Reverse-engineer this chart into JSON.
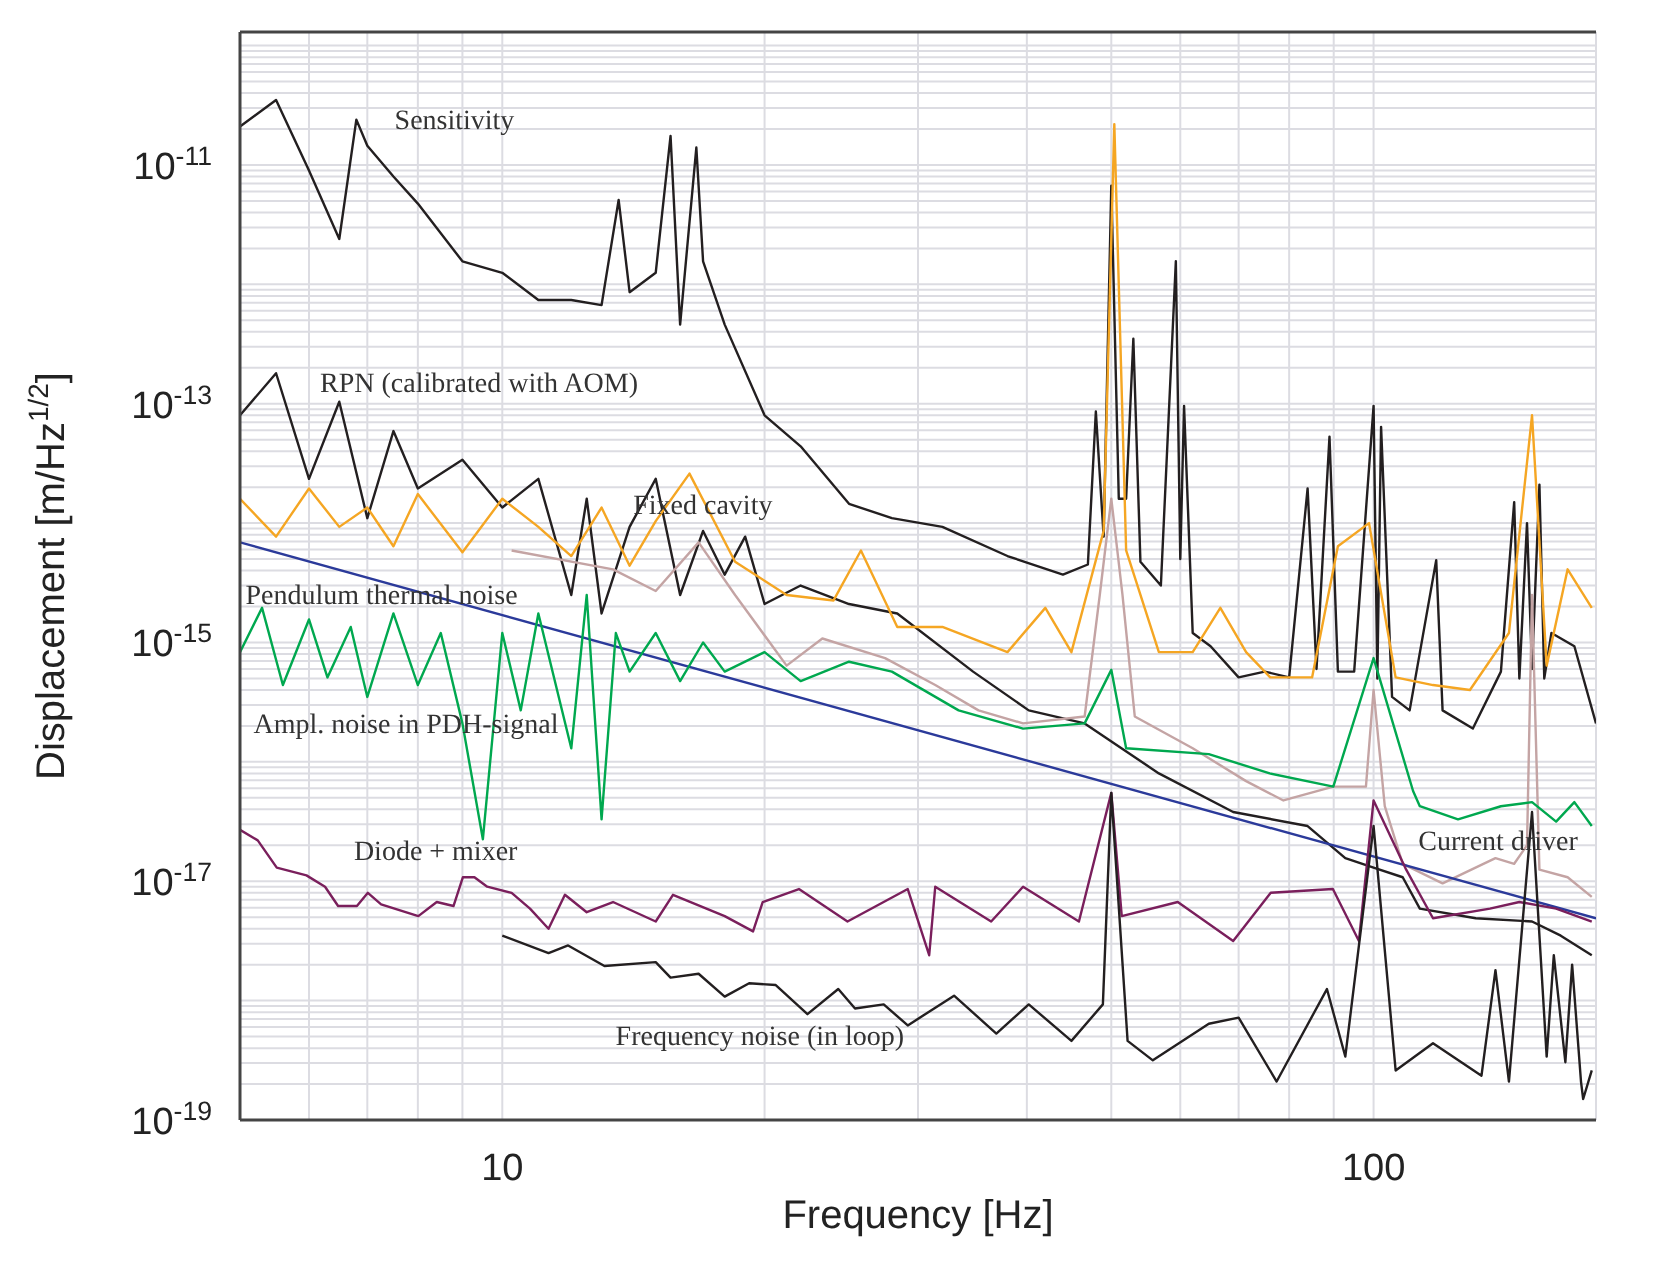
{
  "chart_data": {
    "type": "line",
    "xlabel": "Frequency [Hz]",
    "ylabel": "Displacement [m/Hz$^{1/2}$]",
    "log": "xy",
    "grid": true,
    "line_style": "solid",
    "marker": "none",
    "xlim": [
      5,
      180
    ],
    "xticks": [
      {
        "value": 5,
        "label": null
      },
      {
        "value": 6,
        "label": null
      },
      {
        "value": 7,
        "label": null
      },
      {
        "value": 8,
        "label": null
      },
      {
        "value": 9,
        "label": null
      },
      10,
      {
        "value": 20,
        "label": null
      },
      {
        "value": 30,
        "label": null
      },
      {
        "value": 40,
        "label": null
      },
      {
        "value": 50,
        "label": null
      },
      {
        "value": 60,
        "label": null
      },
      {
        "value": 70,
        "label": null
      },
      {
        "value": 80,
        "label": null
      },
      {
        "value": 90,
        "label": null
      },
      100
    ],
    "ylim": [
      1e-19,
      1.3e-10
    ],
    "yticks": [
      {
        "value": 1e-19,
        "label": "10$^{-19}$"
      },
      {
        "value": 2e-19,
        "label": null
      },
      {
        "value": 3e-19,
        "label": null
      },
      {
        "value": 4e-19,
        "label": null
      },
      {
        "value": 5e-19,
        "label": null
      },
      {
        "value": 6e-19,
        "label": null
      },
      {
        "value": 7e-19,
        "label": null
      },
      {
        "value": 8e-19,
        "label": null
      },
      {
        "value": 9e-19,
        "label": null
      },
      {
        "value": 1e-18,
        "label": null
      },
      {
        "value": 2e-18,
        "label": null
      },
      {
        "value": 3e-18,
        "label": null
      },
      {
        "value": 4e-18,
        "label": null
      },
      {
        "value": 5e-18,
        "label": null
      },
      {
        "value": 6e-18,
        "label": null
      },
      {
        "value": 7e-18,
        "label": null
      },
      {
        "value": 8e-18,
        "label": null
      },
      {
        "value": 9e-18,
        "label": null
      },
      {
        "value": 1e-17,
        "label": "10$^{-17}$"
      },
      {
        "value": 2e-17,
        "label": null
      },
      {
        "value": 3e-17,
        "label": null
      },
      {
        "value": 4e-17,
        "label": null
      },
      {
        "value": 5e-17,
        "label": null
      },
      {
        "value": 6e-17,
        "label": null
      },
      {
        "value": 7e-17,
        "label": null
      },
      {
        "value": 8e-17,
        "label": null
      },
      {
        "value": 9e-17,
        "label": null
      },
      {
        "value": 1e-16,
        "label": null
      },
      {
        "value": 2e-16,
        "label": null
      },
      {
        "value": 3e-16,
        "label": null
      },
      {
        "value": 4e-16,
        "label": null
      },
      {
        "value": 5e-16,
        "label": null
      },
      {
        "value": 6e-16,
        "label": null
      },
      {
        "value": 7e-16,
        "label": null
      },
      {
        "value": 8e-16,
        "label": null
      },
      {
        "value": 9e-16,
        "label": null
      },
      {
        "value": 1e-15,
        "label": "10$^{-15}$"
      },
      {
        "value": 2e-15,
        "label": null
      },
      {
        "value": 3e-15,
        "label": null
      },
      {
        "value": 4e-15,
        "label": null
      },
      {
        "value": 5e-15,
        "label": null
      },
      {
        "value": 6e-15,
        "label": null
      },
      {
        "value": 7e-15,
        "label": null
      },
      {
        "value": 8e-15,
        "label": null
      },
      {
        "value": 9e-15,
        "label": null
      },
      {
        "value": 1e-14,
        "label": null
      },
      {
        "value": 2e-14,
        "label": null
      },
      {
        "value": 3e-14,
        "label": null
      },
      {
        "value": 4e-14,
        "label": null
      },
      {
        "value": 5e-14,
        "label": null
      },
      {
        "value": 6e-14,
        "label": null
      },
      {
        "value": 7e-14,
        "label": null
      },
      {
        "value": 8e-14,
        "label": null
      },
      {
        "value": 9e-14,
        "label": null
      },
      {
        "value": 1e-13,
        "label": "10$^{-13}$"
      },
      {
        "value": 2e-13,
        "label": null
      },
      {
        "value": 3e-13,
        "label": null
      },
      {
        "value": 4e-13,
        "label": null
      },
      {
        "value": 5e-13,
        "label": null
      },
      {
        "value": 6e-13,
        "label": null
      },
      {
        "value": 7e-13,
        "label": null
      },
      {
        "value": 8e-13,
        "label": null
      },
      {
        "value": 9e-13,
        "label": null
      },
      {
        "value": 1e-12,
        "label": null
      },
      {
        "value": 2e-12,
        "label": null
      },
      {
        "value": 3e-12,
        "label": null
      },
      {
        "value": 4e-12,
        "label": null
      },
      {
        "value": 5e-12,
        "label": null
      },
      {
        "value": 6e-12,
        "label": null
      },
      {
        "value": 7e-12,
        "label": null
      },
      {
        "value": 8e-12,
        "label": null
      },
      {
        "value": 9e-12,
        "label": null
      },
      {
        "value": 1e-11,
        "label": "10$^{-11}$"
      },
      {
        "value": 2e-11,
        "label": null
      },
      {
        "value": 3e-11,
        "label": null
      },
      {
        "value": 4e-11,
        "label": null
      },
      {
        "value": 5e-11,
        "label": null
      },
      {
        "value": 6e-11,
        "label": null
      },
      {
        "value": 7e-11,
        "label": null
      },
      {
        "value": 8e-11,
        "label": null
      },
      {
        "value": 9e-11,
        "label": null
      },
      {
        "value": 1e-10,
        "label": null
      }
    ],
    "series": [
      {
        "name": "Sensitivity",
        "color": "#231f20",
        "x": [
          5,
          5.5,
          6,
          6.5,
          6.8,
          7,
          7.5,
          8,
          9,
          10,
          11,
          12,
          13,
          13.6,
          14,
          15,
          15.6,
          16,
          16.7,
          17,
          18,
          20,
          22,
          25,
          28,
          32,
          38,
          44,
          47,
          48,
          49,
          50,
          51,
          52,
          53,
          54,
          57,
          59.3,
          60,
          60.6,
          62,
          65,
          70,
          75,
          80,
          84,
          86,
          89,
          91,
          95,
          100,
          101,
          102,
          105,
          110,
          118,
          120,
          130,
          140,
          145,
          147,
          150,
          152,
          155,
          157,
          160,
          170,
          180
        ],
        "values": [
          2.1e-11,
          3.5e-11,
          9e-12,
          2.4e-12,
          2.4e-11,
          1.45e-11,
          8e-12,
          4.75e-12,
          1.56e-12,
          1.25e-12,
          7.4e-13,
          7.4e-13,
          6.7e-13,
          5.1e-12,
          8.6e-13,
          1.25e-12,
          1.75e-11,
          4.6e-13,
          1.4e-11,
          1.56e-12,
          4.6e-13,
          8e-14,
          4.4e-14,
          1.45e-14,
          1.1e-14,
          9.3e-15,
          5.3e-15,
          3.7e-15,
          4.5e-15,
          8.6e-14,
          7.7e-15,
          6.7e-12,
          1.6e-14,
          1.6e-14,
          3.5e-13,
          4.75e-15,
          3e-15,
          1.56e-12,
          5e-15,
          9.6e-14,
          1.2e-15,
          9.3e-16,
          5.1e-16,
          5.7e-16,
          5.1e-16,
          1.95e-14,
          6e-16,
          5.3e-14,
          5.7e-16,
          5.7e-16,
          9.6e-14,
          5e-16,
          6.4e-14,
          3.5e-16,
          2.7e-16,
          4.9e-15,
          2.7e-16,
          1.9e-16,
          5.7e-16,
          1.5e-14,
          5e-16,
          1e-14,
          6e-16,
          2.1e-14,
          5e-16,
          1.2e-15,
          9.3e-16,
          2.1e-16
        ]
      },
      {
        "name": "RPN (calibrated with AOM)",
        "color": "#231f20",
        "x": [
          5,
          5.5,
          6,
          6.5,
          7,
          7.5,
          8,
          9,
          10,
          11,
          12,
          12.5,
          13,
          14,
          15,
          16,
          17,
          18,
          19,
          20,
          22,
          25,
          28.4,
          34.7,
          40.2,
          46.6,
          56.7,
          69,
          84,
          92.8,
          100,
          108,
          113,
          131,
          152,
          164,
          178
        ],
        "values": [
          8e-14,
          1.8e-13,
          2.35e-14,
          1.04e-13,
          1.1e-14,
          5.9e-14,
          1.95e-14,
          3.4e-14,
          1.35e-14,
          2.35e-14,
          2.5e-15,
          1.6e-14,
          1.75e-15,
          9.3e-15,
          2.35e-14,
          2.5e-15,
          8.6e-15,
          3.7e-15,
          7.7e-15,
          2.1e-15,
          3e-15,
          2.1e-15,
          1.75e-15,
          5.7e-16,
          2.7e-16,
          2.1e-16,
          8e-17,
          3.8e-17,
          2.9e-17,
          1.56e-17,
          1.3e-17,
          1.08e-17,
          5.9e-18,
          4.9e-18,
          4.6e-18,
          3.5e-18,
          2.4e-18
        ]
      },
      {
        "name": "Fixed cavity",
        "color": "#f5a623",
        "x": [
          5,
          5.5,
          6,
          6.5,
          7,
          7.5,
          8,
          9,
          10,
          11,
          12,
          13,
          14,
          15,
          16.4,
          18.5,
          21.2,
          24,
          25.8,
          28.4,
          32,
          38,
          42,
          45,
          49,
          50.4,
          52,
          56.7,
          62,
          66.7,
          71.4,
          76.1,
          85,
          91,
          98.8,
          106,
          117,
          129,
          143,
          152,
          158,
          167,
          178
        ],
        "values": [
          1.6e-14,
          7.7e-15,
          1.95e-14,
          9.3e-15,
          1.35e-14,
          6.4e-15,
          1.75e-14,
          5.7e-15,
          1.6e-14,
          9.3e-15,
          5.3e-15,
          1.35e-14,
          4.4e-15,
          1.04e-14,
          2.6e-14,
          4.75e-15,
          2.5e-15,
          2.25e-15,
          5.9e-15,
          1.35e-15,
          1.35e-15,
          8.3e-16,
          1.95e-15,
          8.3e-16,
          8.6e-15,
          2.2e-11,
          5.9e-15,
          8.3e-16,
          8.3e-16,
          1.95e-15,
          8.3e-16,
          5.1e-16,
          5.1e-16,
          6.4e-15,
          1e-14,
          5.1e-16,
          4.4e-16,
          4e-16,
          1.2e-15,
          8e-14,
          6.4e-16,
          4.1e-15,
          1.95e-15
        ]
      },
      {
        "name": "Current driver",
        "color": "#c4a4a4",
        "x": [
          10.25,
          13.4,
          15,
          16.8,
          18.5,
          21.2,
          23.3,
          27.5,
          31.4,
          35.2,
          39.6,
          46.6,
          48.5,
          50,
          51.5,
          53.2,
          62,
          71.4,
          78.8,
          89.9,
          98,
          100,
          103,
          108,
          120,
          138,
          145,
          150,
          152,
          155,
          167,
          178
        ],
        "values": [
          5.9e-15,
          4.1e-15,
          2.7e-15,
          6.9e-15,
          2.5e-15,
          6.4e-16,
          1.08e-15,
          7.4e-16,
          4.4e-16,
          2.7e-16,
          2.1e-16,
          2.4e-16,
          2.5e-15,
          1.6e-14,
          2.5e-15,
          2.4e-16,
          1.3e-16,
          6.9e-17,
          4.75e-17,
          6.2e-17,
          6.2e-17,
          4e-16,
          4.25e-17,
          1.4e-17,
          9.6e-18,
          1.56e-17,
          1.4e-17,
          2e-17,
          2.5e-15,
          1.25e-17,
          1.08e-17,
          7.4e-18
        ]
      },
      {
        "name": "Pendulum thermal noise",
        "color": "#2b3a9a",
        "x": [
          5,
          180
        ],
        "values": [
          6.9e-15,
          4.9e-18
        ]
      },
      {
        "name": "Ampl. noise in PDH-signal",
        "color": "#00a84f",
        "x": [
          5,
          5.3,
          5.6,
          6,
          6.3,
          6.7,
          7,
          7.5,
          8,
          8.5,
          9,
          9.5,
          10,
          10.5,
          11,
          12,
          12.5,
          13,
          13.5,
          14,
          15,
          16,
          17,
          18,
          20,
          22,
          25,
          28,
          33.4,
          39.6,
          46.6,
          50,
          52,
          64.7,
          76,
          89.9,
          100,
          111,
          113,
          125,
          140,
          152,
          162,
          170,
          178
        ],
        "values": [
          8.3e-16,
          1.95e-15,
          4.4e-16,
          1.56e-15,
          5.1e-16,
          1.35e-15,
          3.5e-16,
          1.75e-15,
          4.4e-16,
          1.2e-15,
          2.1e-16,
          2.25e-17,
          1.2e-15,
          2.7e-16,
          1.75e-15,
          1.3e-16,
          2.5e-15,
          3.3e-17,
          1.2e-15,
          5.7e-16,
          1.2e-15,
          4.75e-16,
          1e-15,
          5.7e-16,
          8.3e-16,
          4.75e-16,
          6.9e-16,
          5.7e-16,
          2.7e-16,
          1.9e-16,
          2.1e-16,
          5.9e-16,
          1.3e-16,
          1.16e-16,
          8e-17,
          6.2e-17,
          7.4e-16,
          5.7e-17,
          4.25e-17,
          3.3e-17,
          4.25e-17,
          4.6e-17,
          3.16e-17,
          4.6e-17,
          2.9e-17
        ]
      },
      {
        "name": "Diode + mixer",
        "color": "#7a1f5c",
        "x": [
          5,
          5.24,
          5.51,
          5.96,
          6.26,
          6.48,
          6.81,
          7.01,
          7.26,
          8.01,
          8.41,
          8.79,
          9.01,
          9.29,
          9.61,
          10.25,
          10.76,
          11.3,
          11.8,
          12.5,
          13.4,
          15,
          15.7,
          18,
          19.4,
          19.9,
          21.9,
          24.9,
          29.2,
          30.9,
          31.4,
          36.4,
          39.6,
          45.9,
          50,
          51.4,
          59.6,
          69,
          76.2,
          89.8,
          96.2,
          100,
          109,
          117,
          136,
          147,
          162,
          178
        ],
        "values": [
          2.7e-17,
          2.2e-17,
          1.3e-17,
          1.12e-17,
          9e-18,
          6.2e-18,
          6.2e-18,
          8e-18,
          6.4e-18,
          5.1e-18,
          6.7e-18,
          6.2e-18,
          1.08e-17,
          1.08e-17,
          9e-18,
          8e-18,
          5.9e-18,
          4e-18,
          7.7e-18,
          5.5e-18,
          6.7e-18,
          4.6e-18,
          7.7e-18,
          5.1e-18,
          3.8e-18,
          6.7e-18,
          8.6e-18,
          4.6e-18,
          8.6e-18,
          2.4e-18,
          9e-18,
          4.6e-18,
          9e-18,
          4.6e-18,
          5.5e-17,
          5.1e-18,
          6.7e-18,
          3.16e-18,
          8e-18,
          8.6e-18,
          3.16e-18,
          4.75e-17,
          1.25e-17,
          4.9e-18,
          5.9e-18,
          6.7e-18,
          5.9e-18,
          4.6e-18
        ]
      },
      {
        "name": "Frequency noise (in loop)",
        "color": "#231f20",
        "x": [
          10,
          11.3,
          11.9,
          13.1,
          15,
          15.6,
          16.8,
          18,
          19.2,
          20.6,
          22.4,
          24.3,
          25.4,
          27.4,
          29.2,
          33,
          36.9,
          40.2,
          45,
          48.9,
          50,
          52.2,
          55.8,
          64.7,
          70,
          77.4,
          88.4,
          92.8,
          100,
          106,
          117,
          133,
          138,
          143,
          152,
          158,
          161,
          166,
          169,
          173,
          174,
          178
        ],
        "values": [
          3.5e-18,
          2.5e-18,
          2.9e-18,
          1.95e-18,
          2.1e-18,
          1.56e-18,
          1.68e-18,
          1.08e-18,
          1.4e-18,
          1.35e-18,
          7.7e-19,
          1.25e-18,
          8.6e-19,
          9.3e-19,
          6.2e-19,
          1.1e-18,
          5.3e-19,
          9.3e-19,
          4.6e-19,
          9.3e-19,
          5.5e-17,
          4.6e-19,
          3.16e-19,
          6.4e-19,
          7.2e-19,
          2.1e-19,
          1.25e-18,
          3.4e-19,
          2.9e-17,
          2.6e-19,
          4.4e-19,
          2.35e-19,
          1.8e-18,
          2.1e-19,
          3.8e-17,
          3.4e-19,
          2.4e-18,
          3.05e-19,
          2e-18,
          2.1e-19,
          1.5e-19,
          2.6e-19
        ]
      }
    ]
  }
}
